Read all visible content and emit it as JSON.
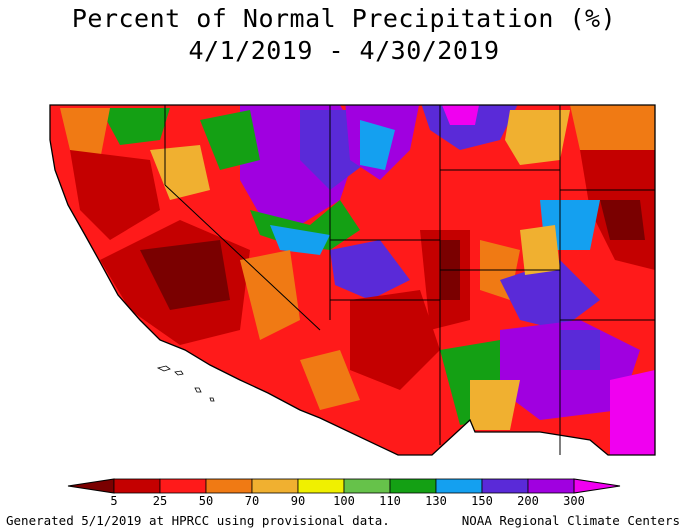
{
  "title": "Percent of Normal Precipitation (%)",
  "date_range": "4/1/2019 - 4/30/2019",
  "legend": {
    "ticks": [
      "5",
      "25",
      "50",
      "70",
      "90",
      "100",
      "110",
      "130",
      "150",
      "200",
      "300"
    ],
    "colors": [
      "#7a0000",
      "#c40000",
      "#ff1a1a",
      "#f07a14",
      "#f0b030",
      "#f0f000",
      "#66c24a",
      "#14a014",
      "#14a0f0",
      "#5a2ad8",
      "#a000e0",
      "#f000f0"
    ]
  },
  "footer": {
    "left": "Generated 5/1/2019 at HPRCC using provisional data.",
    "right": "NOAA Regional Climate Centers"
  }
}
